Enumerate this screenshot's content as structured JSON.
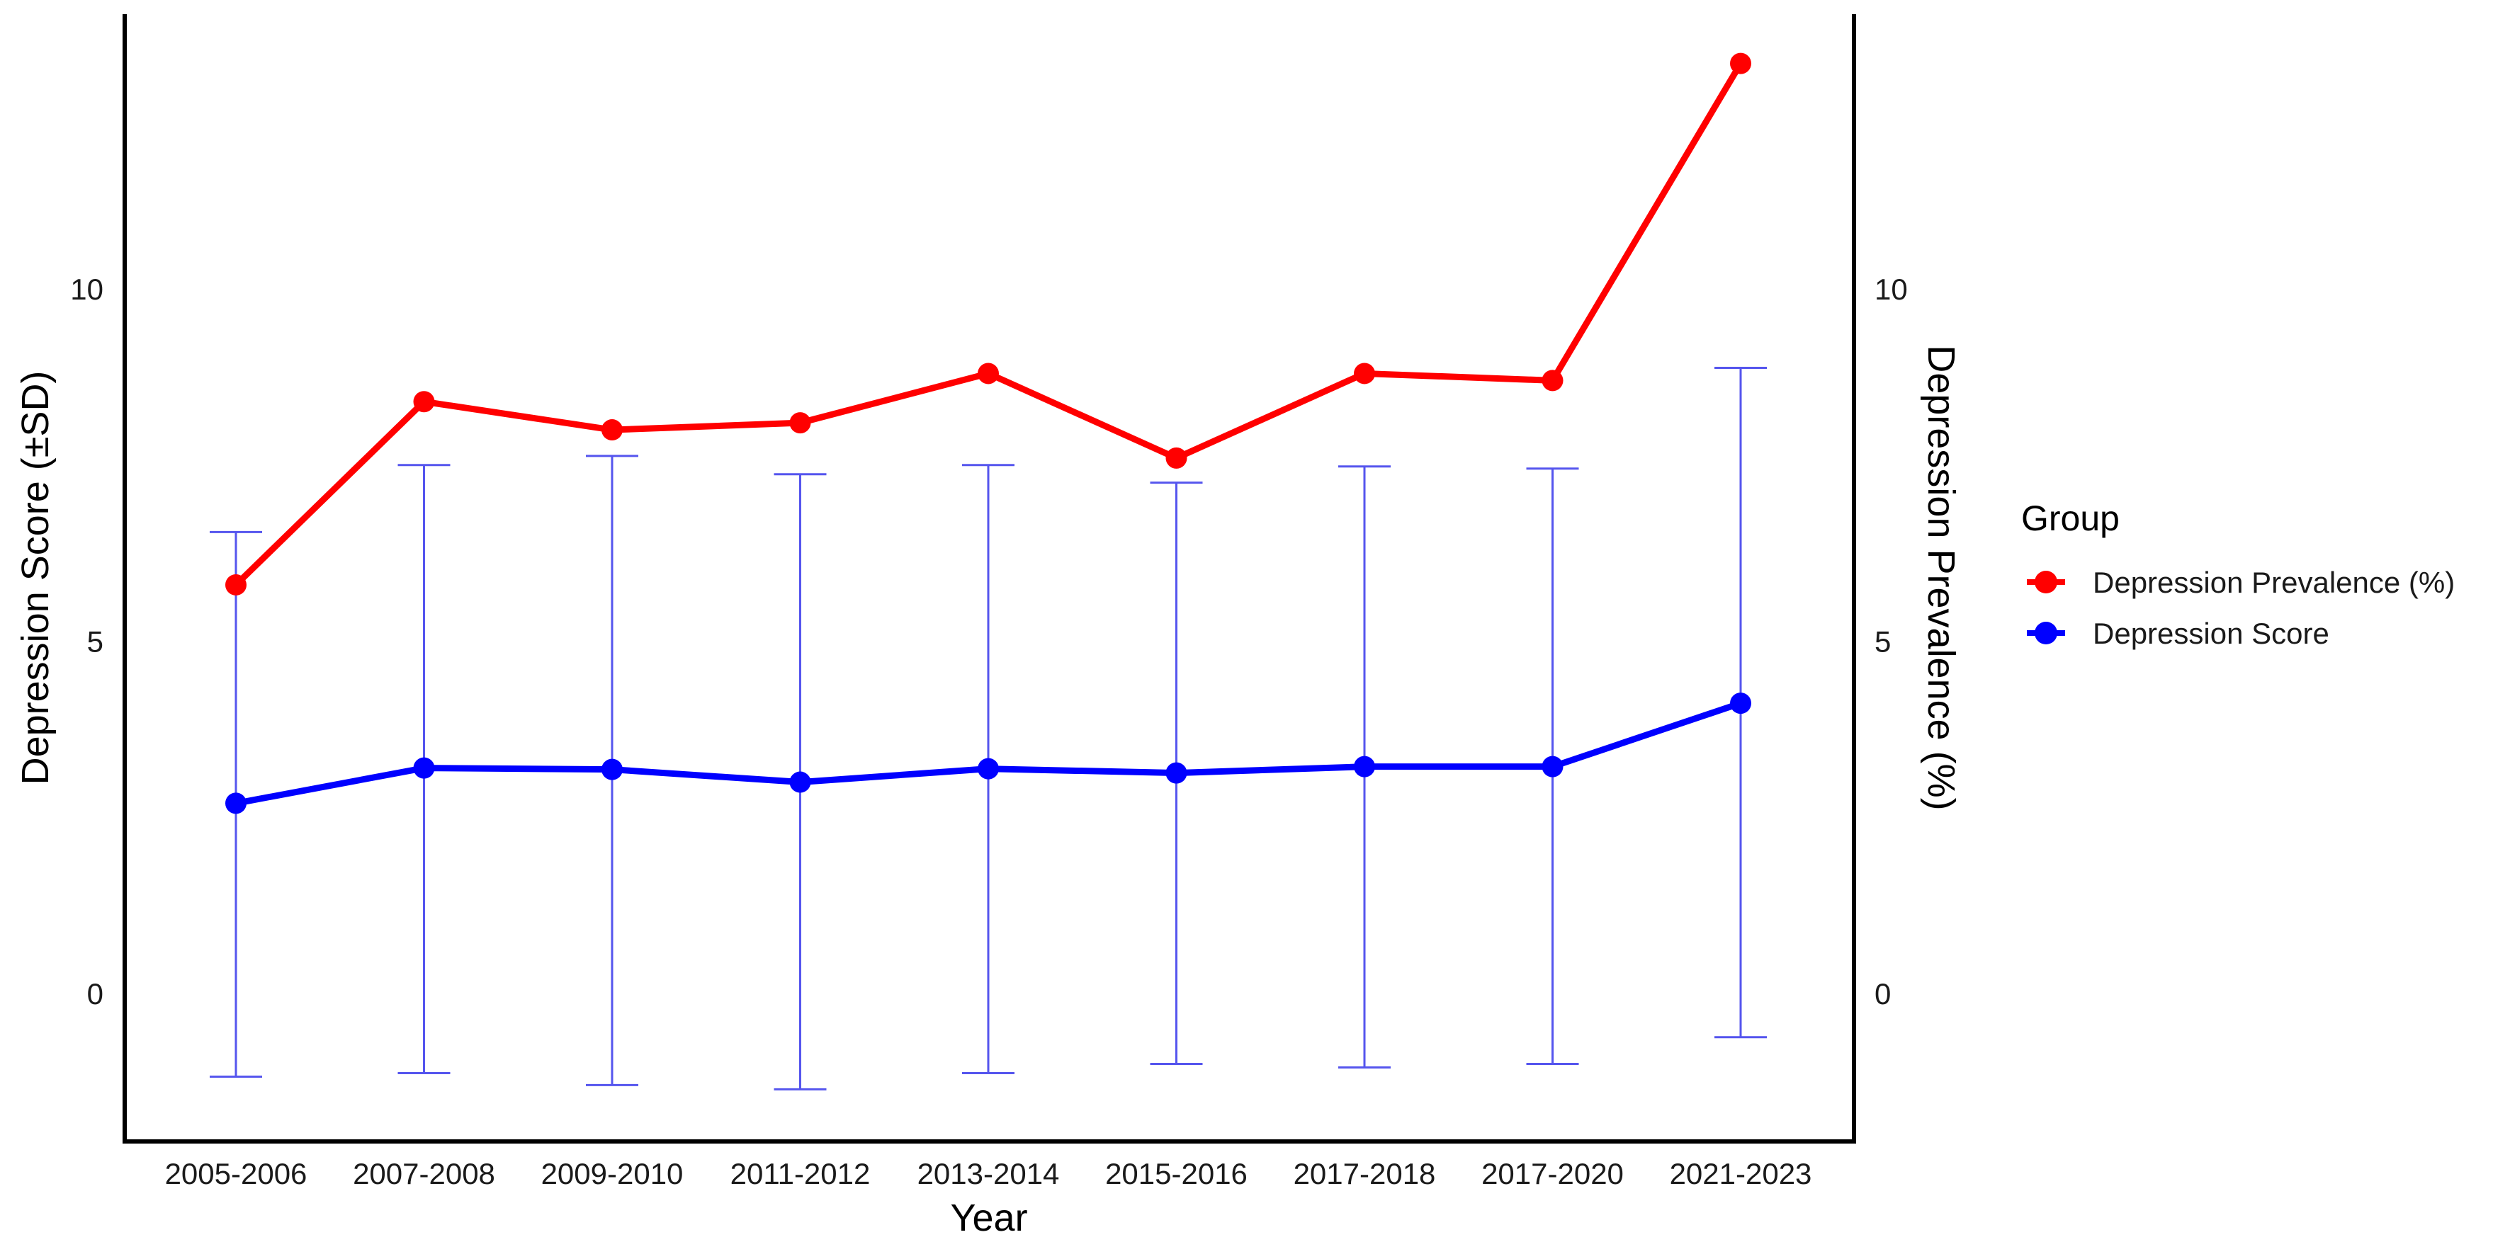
{
  "chart_data": {
    "type": "line",
    "xlabel": "Year",
    "ylabel_left": "Depression Score (±SD)",
    "ylabel_right": "Depression Prevalence (%)",
    "categories": [
      "2005-2006",
      "2007-2008",
      "2009-2010",
      "2011-2012",
      "2013-2014",
      "2015-2016",
      "2017-2018",
      "2017-2020",
      "2021-2023"
    ],
    "ylim": [
      -2.1,
      13.9
    ],
    "yticks_left": [
      0,
      5,
      10
    ],
    "yticks_right": [
      0,
      5,
      10
    ],
    "legend": {
      "title": "Group",
      "position": "right",
      "entries": [
        "Depression Prevalence (%)",
        "Depression Score"
      ]
    },
    "grid": false,
    "series": [
      {
        "name": "Depression Prevalence (%)",
        "axis": "right",
        "color": "#ff0000",
        "values": [
          5.8,
          8.4,
          8.0,
          8.1,
          8.8,
          7.6,
          8.8,
          8.7,
          13.2
        ]
      },
      {
        "name": "Depression Score",
        "axis": "left",
        "color": "#0000ff",
        "errorbar_color": "#5555ee",
        "values": [
          2.7,
          3.2,
          3.18,
          3.0,
          3.19,
          3.13,
          3.22,
          3.22,
          4.12
        ],
        "error_low": [
          -1.18,
          -1.13,
          -1.3,
          -1.36,
          -1.13,
          -1.0,
          -1.05,
          -1.0,
          -0.62
        ],
        "error_high": [
          6.55,
          7.5,
          7.63,
          7.37,
          7.5,
          7.25,
          7.48,
          7.45,
          8.88
        ]
      }
    ]
  }
}
